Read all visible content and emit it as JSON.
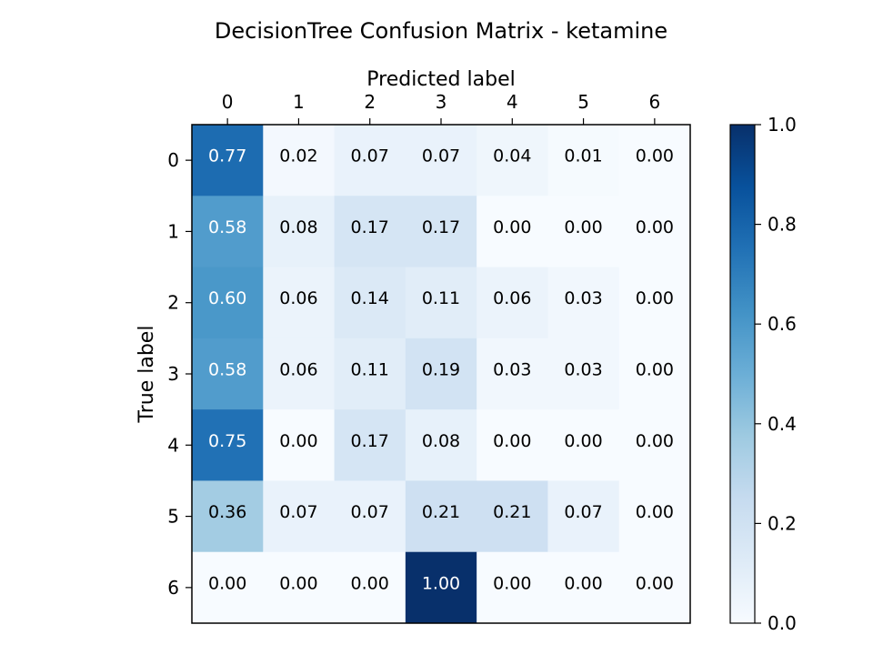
{
  "chart_data": {
    "type": "heatmap",
    "title": "DecisionTree Confusion Matrix - ketamine",
    "xlabel": "Predicted label",
    "ylabel": "True label",
    "x_labels": [
      "0",
      "1",
      "2",
      "3",
      "4",
      "5",
      "6"
    ],
    "y_labels": [
      "0",
      "1",
      "2",
      "3",
      "4",
      "5",
      "6"
    ],
    "values": [
      [
        0.77,
        0.02,
        0.07,
        0.07,
        0.04,
        0.01,
        0.0
      ],
      [
        0.58,
        0.08,
        0.17,
        0.17,
        0.0,
        0.0,
        0.0
      ],
      [
        0.6,
        0.06,
        0.14,
        0.11,
        0.06,
        0.03,
        0.0
      ],
      [
        0.58,
        0.06,
        0.11,
        0.19,
        0.03,
        0.03,
        0.0
      ],
      [
        0.75,
        0.0,
        0.17,
        0.08,
        0.0,
        0.0,
        0.0
      ],
      [
        0.36,
        0.07,
        0.07,
        0.21,
        0.21,
        0.07,
        0.0
      ],
      [
        0.0,
        0.0,
        0.0,
        1.0,
        0.0,
        0.0,
        0.0
      ]
    ],
    "colormap": "Blues",
    "color_range": [
      0.0,
      1.0
    ],
    "colorbar_ticks": [
      "0.0",
      "0.2",
      "0.4",
      "0.6",
      "0.8",
      "1.0"
    ],
    "x_axis_position": "top",
    "grid": false
  }
}
